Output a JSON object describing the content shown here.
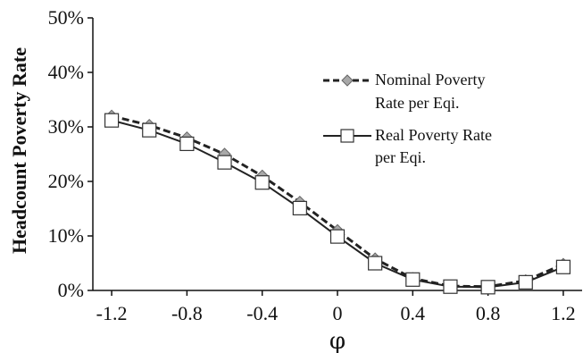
{
  "chart_data": {
    "type": "line",
    "xlabel": "φ",
    "ylabel": "Headcount Poverty Rate",
    "xlim": [
      -1.3,
      1.3
    ],
    "ylim": [
      0,
      50
    ],
    "xticks": [
      -1.2,
      -0.8,
      -0.4,
      0,
      0.4,
      0.8,
      1.2
    ],
    "xtick_labels": [
      "-1.2",
      "-0.8",
      "-0.4",
      "0",
      "0.4",
      "0.8",
      "1.2"
    ],
    "yticks": [
      0,
      10,
      20,
      30,
      40,
      50
    ],
    "ytick_labels": [
      "0%",
      "10%",
      "20%",
      "30%",
      "40%",
      "50%"
    ],
    "grid": false,
    "legend_position": "upper-right",
    "x": [
      -1.2,
      -1.0,
      -0.8,
      -0.6,
      -0.4,
      -0.2,
      0.0,
      0.2,
      0.4,
      0.6,
      0.8,
      1.0,
      1.2
    ],
    "series": [
      {
        "name_lines": [
          "Nominal Poverty",
          "Rate per Eqi."
        ],
        "style": "dashed",
        "marker": "diamond",
        "color": "#222222",
        "marker_fill": "#a8a8a8",
        "values": [
          32.0,
          30.3,
          28.0,
          25.0,
          21.0,
          16.2,
          11.0,
          5.8,
          2.2,
          0.8,
          0.7,
          1.8,
          4.8
        ]
      },
      {
        "name_lines": [
          "Real Poverty Rate",
          "per Eqi."
        ],
        "style": "solid",
        "marker": "square",
        "color": "#222222",
        "marker_fill": "#ffffff",
        "values": [
          31.2,
          29.4,
          26.9,
          23.5,
          19.8,
          15.1,
          9.9,
          5.0,
          2.0,
          0.7,
          0.6,
          1.5,
          4.3
        ]
      }
    ]
  }
}
